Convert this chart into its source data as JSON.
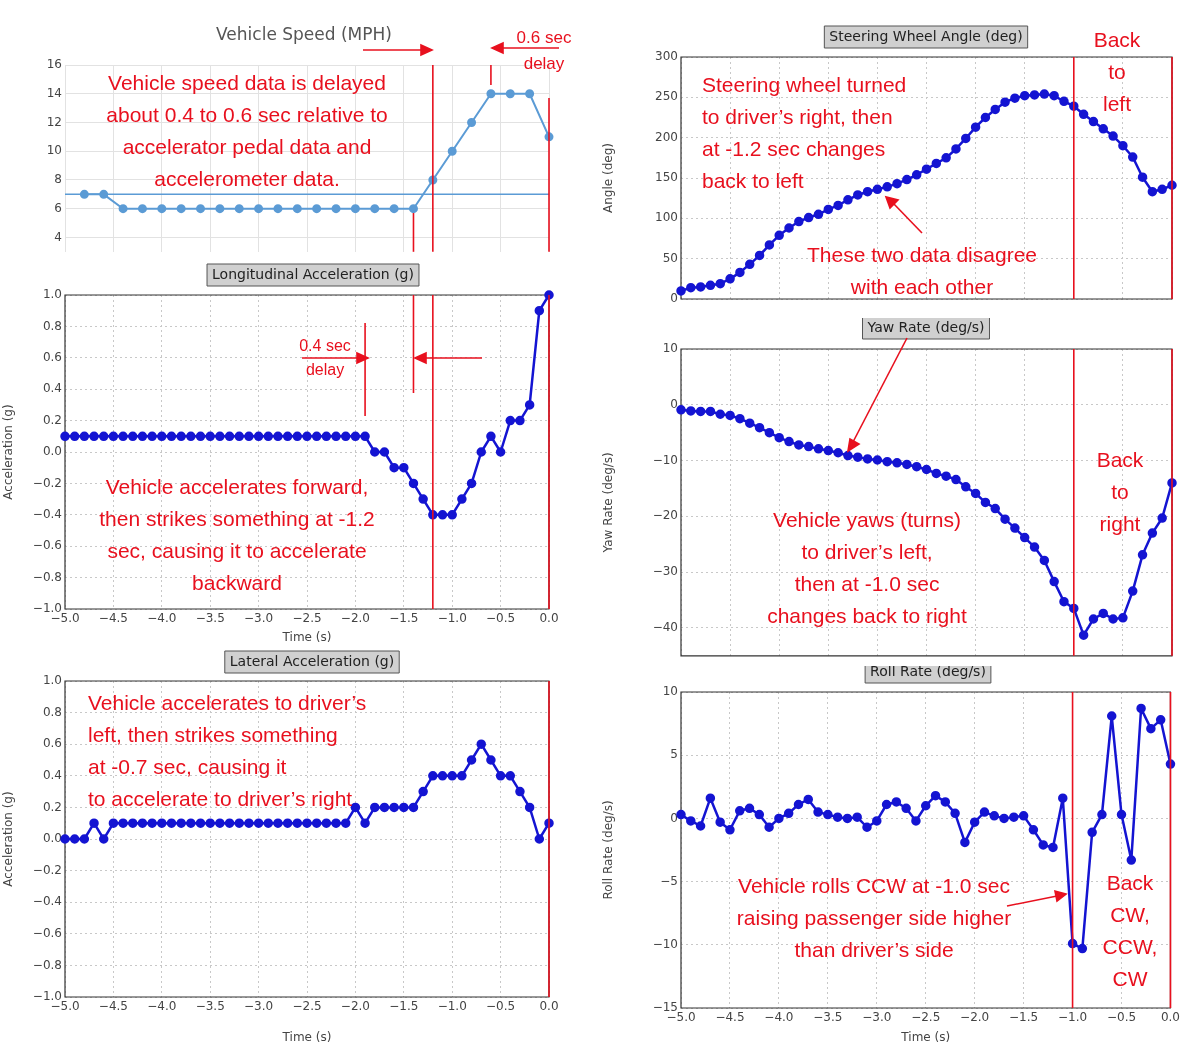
{
  "chart_data": [
    {
      "type": "line",
      "title": "Vehicle Speed (MPH)",
      "color": "#5b9bd5",
      "marker": "circle",
      "grid": true,
      "tick_labels": "y",
      "x": [
        -4.8,
        -4.6,
        -4.4,
        -4.2,
        -4,
        -3.8,
        -3.6,
        -3.4,
        -3.2,
        -3,
        -2.8,
        -2.6,
        -2.4,
        -2.2,
        -2,
        -1.8,
        -1.6,
        -1.4,
        -1.2,
        -1,
        -0.8,
        -0.6,
        -0.4,
        -0.2,
        0
      ],
      "values": [
        7,
        7,
        6,
        6,
        6,
        6,
        6,
        6,
        6,
        6,
        6,
        6,
        6,
        6,
        6,
        6,
        6,
        6,
        8,
        10,
        12,
        14,
        14,
        14,
        11
      ],
      "xlim": [
        -5,
        0
      ],
      "xticks": [
        {
          "value": -5,
          "label": null
        },
        {
          "value": -4.5,
          "label": null
        },
        {
          "value": -4,
          "label": null
        },
        {
          "value": -3.5,
          "label": null
        },
        {
          "value": -3,
          "label": null
        },
        {
          "value": -2.5,
          "label": null
        },
        {
          "value": -2,
          "label": null
        },
        {
          "value": -1.5,
          "label": null
        },
        {
          "value": -1,
          "label": null
        },
        {
          "value": -0.5,
          "label": null
        },
        {
          "value": 0,
          "label": null
        }
      ],
      "ylim": [
        3,
        16
      ],
      "yticks": [
        4,
        6,
        8,
        10,
        12,
        14,
        16
      ],
      "ref_lines": [
        {
          "axis": "y",
          "value": 7,
          "color": "#5b9bd5"
        },
        {
          "axis": "x",
          "value": 0,
          "color": "#e8101e"
        },
        {
          "axis": "x",
          "value": -1.2,
          "color": "#e8101e"
        },
        {
          "axis": "x",
          "value": -0.6,
          "color": "#e8101e"
        },
        {
          "axis": "x",
          "value": -1.4,
          "color": "#e8101e"
        }
      ],
      "annotations": [
        "Vehicle speed data is delayed about 0.4 to 0.6 sec relative to accelerator pedal data and accelerometer data.",
        "0.6 sec delay"
      ]
    },
    {
      "type": "line",
      "title": "Longitudinal Acceleration (g)",
      "xlabel": "Time (s)",
      "ylabel": "Acceleration (g)",
      "color": "#1414d2",
      "marker": "circle",
      "grid": true,
      "x": [
        -5,
        -4.9,
        -4.8,
        -4.7,
        -4.6,
        -4.5,
        -4.4,
        -4.3,
        -4.2,
        -4.1,
        -4,
        -3.9,
        -3.8,
        -3.7,
        -3.6,
        -3.5,
        -3.4,
        -3.3,
        -3.2,
        -3.1,
        -3,
        -2.9,
        -2.8,
        -2.7,
        -2.6,
        -2.5,
        -2.4,
        -2.3,
        -2.2,
        -2.1,
        -2,
        -1.9,
        -1.8,
        -1.7,
        -1.6,
        -1.5,
        -1.4,
        -1.3,
        -1.2,
        -1.1,
        -1,
        -0.9,
        -0.8,
        -0.7,
        -0.6,
        -0.5,
        -0.4,
        -0.3,
        -0.2,
        -0.1,
        0
      ],
      "values": [
        0.1,
        0.1,
        0.1,
        0.1,
        0.1,
        0.1,
        0.1,
        0.1,
        0.1,
        0.1,
        0.1,
        0.1,
        0.1,
        0.1,
        0.1,
        0.1,
        0.1,
        0.1,
        0.1,
        0.1,
        0.1,
        0.1,
        0.1,
        0.1,
        0.1,
        0.1,
        0.1,
        0.1,
        0.1,
        0.1,
        0.1,
        0.1,
        0,
        0,
        -0.1,
        -0.1,
        -0.2,
        -0.3,
        -0.4,
        -0.4,
        -0.4,
        -0.3,
        -0.2,
        0,
        0.1,
        0,
        0.2,
        0.2,
        0.3,
        0.9,
        1.0
      ],
      "xlim": [
        -5,
        0
      ],
      "xticks": [
        {
          "value": -5,
          "label": "−5.0"
        },
        {
          "value": -4.5,
          "label": "−4.5"
        },
        {
          "value": -4,
          "label": "−4.0"
        },
        {
          "value": -3.5,
          "label": "−3.5"
        },
        {
          "value": -3,
          "label": "−3.0"
        },
        {
          "value": -2.5,
          "label": "−2.5"
        },
        {
          "value": -2,
          "label": "−2.0"
        },
        {
          "value": -1.5,
          "label": "−1.5"
        },
        {
          "value": -1,
          "label": "−1.0"
        },
        {
          "value": -0.5,
          "label": "−0.5"
        },
        {
          "value": 0,
          "label": "0.0"
        }
      ],
      "ylim": [
        -1,
        1
      ],
      "yticks": [
        {
          "value": -1,
          "label": "−1.0"
        },
        {
          "value": -0.8,
          "label": "−0.8"
        },
        {
          "value": -0.6,
          "label": "−0.6"
        },
        {
          "value": -0.4,
          "label": "−0.4"
        },
        {
          "value": -0.2,
          "label": "−0.2"
        },
        {
          "value": 0,
          "label": "0.0"
        },
        {
          "value": 0.2,
          "label": "0.2"
        },
        {
          "value": 0.4,
          "label": "0.4"
        },
        {
          "value": 0.6,
          "label": "0.6"
        },
        {
          "value": 0.8,
          "label": "0.8"
        },
        {
          "value": 1,
          "label": "1.0"
        }
      ],
      "ref_lines": [
        {
          "axis": "x",
          "value": 0,
          "color": "#e8101e"
        },
        {
          "axis": "x",
          "value": -1.2,
          "color": "#e8101e"
        },
        {
          "axis": "x",
          "value": -1.4,
          "color": "#e8101e"
        },
        {
          "axis": "x",
          "value": -1.9,
          "color": "#e8101e"
        }
      ],
      "annotations": [
        "0.4 sec delay",
        "Vehicle accelerates forward, then strikes something at -1.2 sec, causing it to accelerate backward"
      ]
    },
    {
      "type": "line",
      "title": "Lateral Acceleration (g)",
      "xlabel": "Time (s)",
      "ylabel": "Acceleration (g)",
      "color": "#1414d2",
      "marker": "circle",
      "grid": true,
      "x": [
        -5,
        -4.9,
        -4.8,
        -4.7,
        -4.6,
        -4.5,
        -4.4,
        -4.3,
        -4.2,
        -4.1,
        -4,
        -3.9,
        -3.8,
        -3.7,
        -3.6,
        -3.5,
        -3.4,
        -3.3,
        -3.2,
        -3.1,
        -3,
        -2.9,
        -2.8,
        -2.7,
        -2.6,
        -2.5,
        -2.4,
        -2.3,
        -2.2,
        -2.1,
        -2,
        -1.9,
        -1.8,
        -1.7,
        -1.6,
        -1.5,
        -1.4,
        -1.3,
        -1.2,
        -1.1,
        -1,
        -0.9,
        -0.8,
        -0.7,
        -0.6,
        -0.5,
        -0.4,
        -0.3,
        -0.2,
        -0.1,
        0
      ],
      "values": [
        0,
        0,
        0,
        0.1,
        0,
        0.1,
        0.1,
        0.1,
        0.1,
        0.1,
        0.1,
        0.1,
        0.1,
        0.1,
        0.1,
        0.1,
        0.1,
        0.1,
        0.1,
        0.1,
        0.1,
        0.1,
        0.1,
        0.1,
        0.1,
        0.1,
        0.1,
        0.1,
        0.1,
        0.1,
        0.2,
        0.1,
        0.2,
        0.2,
        0.2,
        0.2,
        0.2,
        0.3,
        0.4,
        0.4,
        0.4,
        0.4,
        0.5,
        0.6,
        0.5,
        0.4,
        0.4,
        0.3,
        0.2,
        0,
        0.1
      ],
      "xlim": [
        -5,
        0
      ],
      "xticks": [
        {
          "value": -5,
          "label": "−5.0"
        },
        {
          "value": -4.5,
          "label": "−4.5"
        },
        {
          "value": -4,
          "label": "−4.0"
        },
        {
          "value": -3.5,
          "label": "−3.5"
        },
        {
          "value": -3,
          "label": "−3.0"
        },
        {
          "value": -2.5,
          "label": "−2.5"
        },
        {
          "value": -2,
          "label": "−2.0"
        },
        {
          "value": -1.5,
          "label": "−1.5"
        },
        {
          "value": -1,
          "label": "−1.0"
        },
        {
          "value": -0.5,
          "label": "−0.5"
        },
        {
          "value": 0,
          "label": "0.0"
        }
      ],
      "ylim": [
        -1,
        1
      ],
      "yticks": [
        {
          "value": -1,
          "label": "−1.0"
        },
        {
          "value": -0.8,
          "label": "−0.8"
        },
        {
          "value": -0.6,
          "label": "−0.6"
        },
        {
          "value": -0.4,
          "label": "−0.4"
        },
        {
          "value": -0.2,
          "label": "−0.2"
        },
        {
          "value": 0,
          "label": "0.0"
        },
        {
          "value": 0.2,
          "label": "0.2"
        },
        {
          "value": 0.4,
          "label": "0.4"
        },
        {
          "value": 0.6,
          "label": "0.6"
        },
        {
          "value": 0.8,
          "label": "0.8"
        },
        {
          "value": 1,
          "label": "1.0"
        }
      ],
      "ref_lines": [
        {
          "axis": "x",
          "value": 0,
          "color": "#e8101e"
        }
      ],
      "annotations": [
        "Vehicle accelerates to driver’s left, then strikes something at -0.7 sec, causing it to accelerate to driver’s right"
      ]
    },
    {
      "type": "line",
      "title": "Steering Wheel Angle (deg)",
      "ylabel": "Angle (deg)",
      "color": "#1414d2",
      "marker": "circle",
      "grid": true,
      "tick_labels": "y",
      "x": [
        -5,
        -4.9,
        -4.8,
        -4.7,
        -4.6,
        -4.5,
        -4.4,
        -4.3,
        -4.2,
        -4.1,
        -4,
        -3.9,
        -3.8,
        -3.7,
        -3.6,
        -3.5,
        -3.4,
        -3.3,
        -3.2,
        -3.1,
        -3,
        -2.9,
        -2.8,
        -2.7,
        -2.6,
        -2.5,
        -2.4,
        -2.3,
        -2.2,
        -2.1,
        -2,
        -1.9,
        -1.8,
        -1.7,
        -1.6,
        -1.5,
        -1.4,
        -1.3,
        -1.2,
        -1.1,
        -1,
        -0.9,
        -0.8,
        -0.7,
        -0.6,
        -0.5,
        -0.4,
        -0.3,
        -0.2,
        -0.1,
        0
      ],
      "values": [
        10,
        14,
        15,
        17,
        19,
        25,
        33,
        43,
        54,
        67,
        79,
        88,
        96,
        101,
        105,
        111,
        116,
        123,
        129,
        133,
        136,
        139,
        143,
        148,
        154,
        161,
        168,
        175,
        186,
        199,
        213,
        225,
        235,
        244,
        249,
        252,
        253,
        254,
        252,
        245,
        239,
        229,
        220,
        211,
        202,
        190,
        176,
        151,
        133,
        136,
        141
      ],
      "xlim": [
        -5,
        0
      ],
      "xticks": [
        {
          "value": -5,
          "label": null
        },
        {
          "value": -4.5,
          "label": null
        },
        {
          "value": -4,
          "label": null
        },
        {
          "value": -3.5,
          "label": null
        },
        {
          "value": -3,
          "label": null
        },
        {
          "value": -2.5,
          "label": null
        },
        {
          "value": -2,
          "label": null
        },
        {
          "value": -1.5,
          "label": null
        },
        {
          "value": -1,
          "label": null
        },
        {
          "value": -0.5,
          "label": null
        },
        {
          "value": 0,
          "label": null
        }
      ],
      "ylim": [
        0,
        300
      ],
      "yticks": [
        0,
        50,
        100,
        150,
        200,
        250,
        300
      ],
      "ref_lines": [
        {
          "axis": "x",
          "value": -1,
          "color": "#e8101e"
        },
        {
          "axis": "x",
          "value": 0,
          "color": "#e8101e"
        }
      ],
      "annotations": [
        "Steering wheel turned to driver’s right, then at -1.2 sec changes back to left",
        "These two data disagree with each other",
        "Back to left"
      ]
    },
    {
      "type": "line",
      "title": "Yaw Rate (deg/s)",
      "ylabel": "Yaw Rate (deg/s)",
      "color": "#1414d2",
      "marker": "circle",
      "grid": true,
      "tick_labels": "y",
      "x": [
        -5,
        -4.9,
        -4.8,
        -4.7,
        -4.6,
        -4.5,
        -4.4,
        -4.3,
        -4.2,
        -4.1,
        -4,
        -3.9,
        -3.8,
        -3.7,
        -3.6,
        -3.5,
        -3.4,
        -3.3,
        -3.2,
        -3.1,
        -3,
        -2.9,
        -2.8,
        -2.7,
        -2.6,
        -2.5,
        -2.4,
        -2.3,
        -2.2,
        -2.1,
        -2,
        -1.9,
        -1.8,
        -1.7,
        -1.6,
        -1.5,
        -1.4,
        -1.3,
        -1.2,
        -1.1,
        -1,
        -0.9,
        -0.8,
        -0.7,
        -0.6,
        -0.5,
        -0.4,
        -0.3,
        -0.2,
        -0.1,
        0
      ],
      "values": [
        -0.9,
        -1.1,
        -1.2,
        -1.2,
        -1.7,
        -1.9,
        -2.5,
        -3.3,
        -4.1,
        -5.0,
        -5.9,
        -6.6,
        -7.2,
        -7.5,
        -7.9,
        -8.2,
        -8.6,
        -9.1,
        -9.4,
        -9.7,
        -9.9,
        -10.2,
        -10.4,
        -10.7,
        -11.1,
        -11.6,
        -12.3,
        -12.8,
        -13.4,
        -14.7,
        -15.9,
        -17.5,
        -18.6,
        -20.5,
        -22.1,
        -23.8,
        -25.5,
        -27.9,
        -31.7,
        -35.3,
        -36.5,
        -41.3,
        -38.4,
        -37.4,
        -38.4,
        -38.2,
        -33.4,
        -26.9,
        -23.0,
        -20.3,
        -14.0
      ],
      "xlim": [
        -5,
        0
      ],
      "xticks": [
        {
          "value": -5,
          "label": null
        },
        {
          "value": -4.5,
          "label": null
        },
        {
          "value": -4,
          "label": null
        },
        {
          "value": -3.5,
          "label": null
        },
        {
          "value": -3,
          "label": null
        },
        {
          "value": -2.5,
          "label": null
        },
        {
          "value": -2,
          "label": null
        },
        {
          "value": -1.5,
          "label": null
        },
        {
          "value": -1,
          "label": null
        },
        {
          "value": -0.5,
          "label": null
        },
        {
          "value": 0,
          "label": null
        }
      ],
      "ylim": [
        -45,
        10
      ],
      "yticks": [
        {
          "value": -40,
          "label": "−40"
        },
        {
          "value": -30,
          "label": "−30"
        },
        {
          "value": -20,
          "label": "−20"
        },
        {
          "value": -10,
          "label": "−10"
        },
        0,
        10
      ],
      "ref_lines": [
        {
          "axis": "x",
          "value": -1,
          "color": "#e8101e"
        },
        {
          "axis": "x",
          "value": 0,
          "color": "#e8101e"
        }
      ],
      "annotations": [
        "Vehicle yaws (turns) to driver’s left, then at -1.0 sec changes back to right",
        "Back to right"
      ]
    },
    {
      "type": "line",
      "title": "Roll Rate (deg/s)",
      "xlabel": "Time (s)",
      "ylabel": "Roll Rate (deg/s)",
      "color": "#1414d2",
      "marker": "circle",
      "grid": true,
      "x": [
        -5,
        -4.9,
        -4.8,
        -4.7,
        -4.6,
        -4.5,
        -4.4,
        -4.3,
        -4.2,
        -4.1,
        -4,
        -3.9,
        -3.8,
        -3.7,
        -3.6,
        -3.5,
        -3.4,
        -3.3,
        -3.2,
        -3.1,
        -3,
        -2.9,
        -2.8,
        -2.7,
        -2.6,
        -2.5,
        -2.4,
        -2.3,
        -2.2,
        -2.1,
        -2,
        -1.9,
        -1.8,
        -1.7,
        -1.6,
        -1.5,
        -1.4,
        -1.3,
        -1.2,
        -1.1,
        -1,
        -0.9,
        -0.8,
        -0.7,
        -0.6,
        -0.5,
        -0.4,
        -0.3,
        -0.2,
        -0.1,
        0
      ],
      "values": [
        0.3,
        -0.2,
        -0.6,
        1.6,
        -0.3,
        -0.9,
        0.6,
        0.8,
        0.3,
        -0.7,
        0.0,
        0.4,
        1.1,
        1.5,
        0.5,
        0.3,
        0.1,
        0.0,
        0.1,
        -0.7,
        -0.2,
        1.1,
        1.3,
        0.8,
        -0.2,
        1.0,
        1.8,
        1.3,
        0.4,
        -1.9,
        -0.3,
        0.5,
        0.2,
        0.0,
        0.1,
        0.2,
        -0.9,
        -2.1,
        -2.3,
        1.6,
        -9.9,
        -10.3,
        -1.1,
        0.3,
        8.1,
        0.3,
        -3.3,
        8.7,
        7.1,
        7.8,
        4.3
      ],
      "xlim": [
        -5,
        0
      ],
      "xticks": [
        {
          "value": -5,
          "label": "−5.0"
        },
        {
          "value": -4.5,
          "label": "−4.5"
        },
        {
          "value": -4,
          "label": "−4.0"
        },
        {
          "value": -3.5,
          "label": "−3.5"
        },
        {
          "value": -3,
          "label": "−3.0"
        },
        {
          "value": -2.5,
          "label": "−2.5"
        },
        {
          "value": -2,
          "label": "−2.0"
        },
        {
          "value": -1.5,
          "label": "−1.5"
        },
        {
          "value": -1,
          "label": "−1.0"
        },
        {
          "value": -0.5,
          "label": "−0.5"
        },
        {
          "value": 0,
          "label": "0.0"
        }
      ],
      "ylim": [
        -15,
        10
      ],
      "yticks": [
        {
          "value": -15,
          "label": "−15"
        },
        {
          "value": -10,
          "label": "−10"
        },
        {
          "value": -5,
          "label": "−5"
        },
        0,
        5,
        10
      ],
      "ref_lines": [
        {
          "axis": "x",
          "value": -1,
          "color": "#e8101e"
        },
        {
          "axis": "x",
          "value": 0,
          "color": "#e8101e"
        }
      ],
      "annotations": [
        "Vehicle rolls CCW at -1.0 sec raising passenger side higher than driver’s side",
        "Back CW, CCW, CW"
      ]
    }
  ]
}
